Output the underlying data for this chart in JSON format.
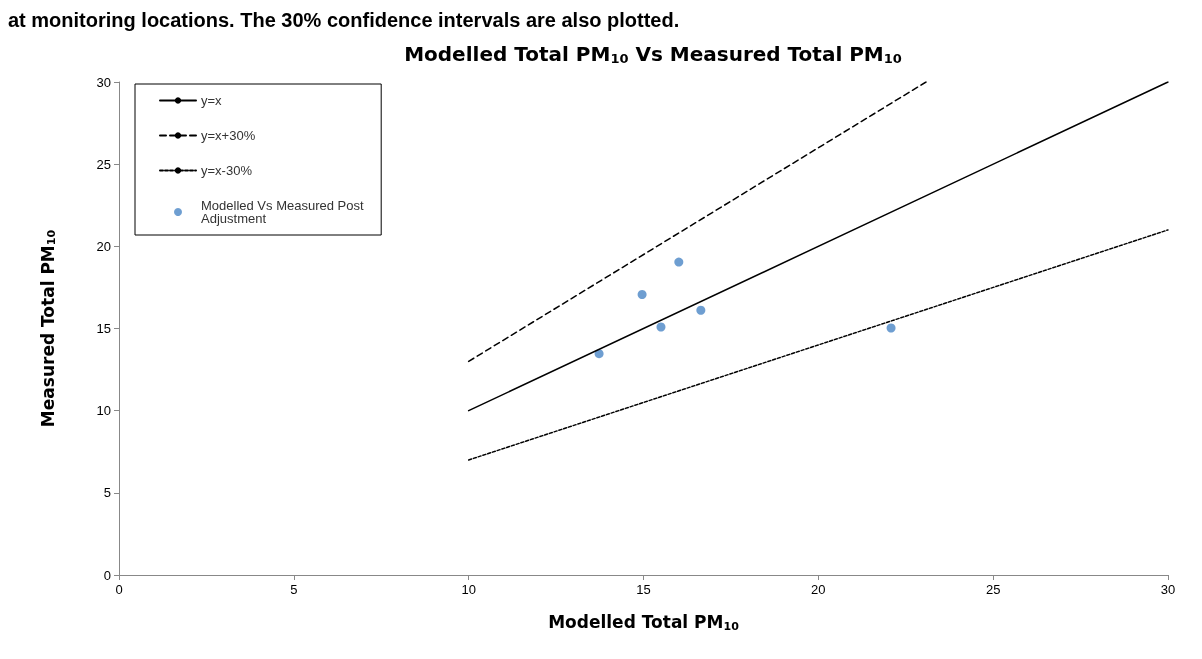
{
  "chart_data": {
    "type": "scatter",
    "title": "Modelled Total PM$_{10}$ Vs Measured Total PM$_{10}$",
    "xlabel": "Modelled Total PM$_{10}$",
    "ylabel": "Measured Total PM$_{10}$",
    "annotations": [
      "at monitoring locations. The 30% confidence intervals are also plotted."
    ],
    "xlim": [
      0,
      30
    ],
    "xticks": [
      0,
      5,
      10,
      15,
      20,
      25,
      30
    ],
    "ylim": [
      0,
      30
    ],
    "yticks": [
      0,
      5,
      10,
      15,
      20,
      25,
      30
    ],
    "grid": false,
    "legend": "top left",
    "series": [
      {
        "name": "y=x",
        "type": "line",
        "color": "#000000",
        "line_style": "solid",
        "marker": "none",
        "x": [
          10,
          30
        ],
        "values": [
          10,
          30
        ]
      },
      {
        "name": "y=x+30%",
        "type": "line",
        "color": "#000000",
        "line_style": "dashed",
        "marker": "none",
        "x": [
          10,
          23.08
        ],
        "values": [
          13,
          30
        ]
      },
      {
        "name": "y=x-30%",
        "type": "line",
        "color": "#000000",
        "line_style": "dotted",
        "marker": "none",
        "x": [
          10,
          30
        ],
        "values": [
          7,
          21
        ]
      },
      {
        "name": "Modelled Vs Measured Post Adjustment",
        "color": "#4a86c5",
        "marker": "circle",
        "x": [
          13.73,
          14.96,
          16.01,
          15.5,
          16.64,
          22.08
        ],
        "values": [
          13.47,
          17.07,
          19.04,
          15.09,
          16.11,
          15.03
        ]
      }
    ]
  }
}
